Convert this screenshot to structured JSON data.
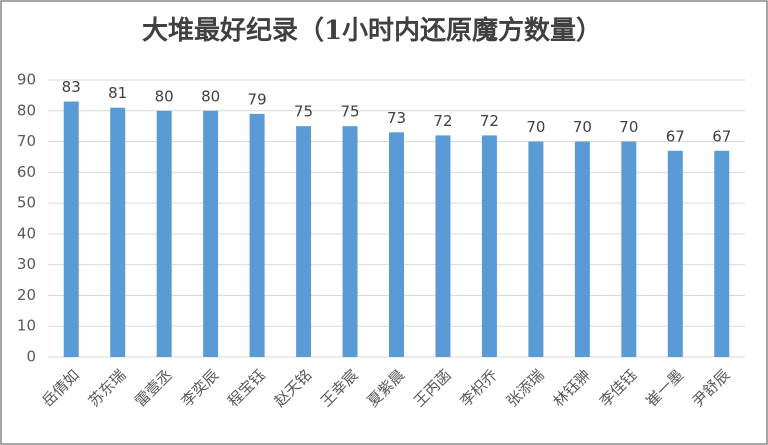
{
  "chart_data": {
    "type": "bar",
    "title": "大堆最好纪录（1小时内还原魔方数量）",
    "categories": [
      "岳倩如",
      "苏东瑞",
      "雷壹丞",
      "李奕辰",
      "程宝钰",
      "赵天铭",
      "王幸宸",
      "夏紫晨",
      "王丙菡",
      "李枳乔",
      "张添瑞",
      "林钰翀",
      "李佳钰",
      "崔一墨",
      "尹舒辰"
    ],
    "values": [
      83,
      81,
      80,
      80,
      79,
      75,
      75,
      73,
      72,
      72,
      70,
      70,
      70,
      67,
      67
    ],
    "color": "#5b9bd5",
    "ylim": [
      0,
      90
    ],
    "yticks": [
      0,
      10,
      20,
      30,
      40,
      50,
      60,
      70,
      80,
      90
    ],
    "grid": true
  }
}
